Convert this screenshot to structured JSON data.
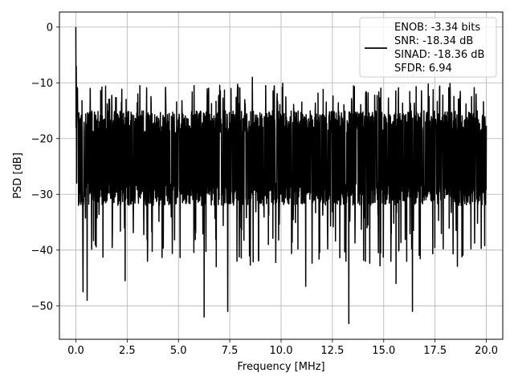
{
  "chart_data": {
    "type": "line",
    "title": "",
    "xlabel": "Frequency [MHz]",
    "ylabel": "PSD [dB]",
    "xlim": [
      -0.8,
      20.8
    ],
    "ylim": [
      -56,
      2.7
    ],
    "grid": true,
    "xticks": [
      0.0,
      2.5,
      5.0,
      7.5,
      10.0,
      12.5,
      15.0,
      17.5,
      20.0
    ],
    "xtick_labels": [
      "0.0",
      "2.5",
      "5.0",
      "7.5",
      "10.0",
      "12.5",
      "15.0",
      "17.5",
      "20.0"
    ],
    "yticks": [
      0,
      -10,
      -20,
      -30,
      -40,
      -50
    ],
    "ytick_labels": [
      "0",
      "−10",
      "−20",
      "−30",
      "−40",
      "−50"
    ],
    "legend": {
      "placement": "top-right",
      "lines": [
        "ENOB: -3.34 bits",
        "SNR: -18.34 dB",
        "SINAD: -18.36 dB",
        "SFDR: 6.94"
      ]
    },
    "series": [
      {
        "color": "#000000",
        "description": "noise-like power spectral density, approximately -22 dB mean with fluctuations between about -10 and -53 dB",
        "x_range": [
          0.0,
          20.0
        ],
        "peaks": [
          {
            "x": 0.0,
            "y": 0.0
          },
          {
            "x": 0.05,
            "y": -7.0
          },
          {
            "x": 0.08,
            "y": -11.0
          },
          {
            "x": 8.6,
            "y": -9.0
          }
        ],
        "dips": [
          {
            "x": 0.35,
            "y": -47.5
          },
          {
            "x": 0.55,
            "y": -49.0
          },
          {
            "x": 2.4,
            "y": -45.5
          },
          {
            "x": 6.25,
            "y": -52.0
          },
          {
            "x": 7.4,
            "y": -51.0
          },
          {
            "x": 13.3,
            "y": -53.2
          },
          {
            "x": 16.4,
            "y": -51.0
          },
          {
            "x": 11.2,
            "y": -46.5
          },
          {
            "x": 15.6,
            "y": -46.0
          }
        ]
      }
    ]
  }
}
